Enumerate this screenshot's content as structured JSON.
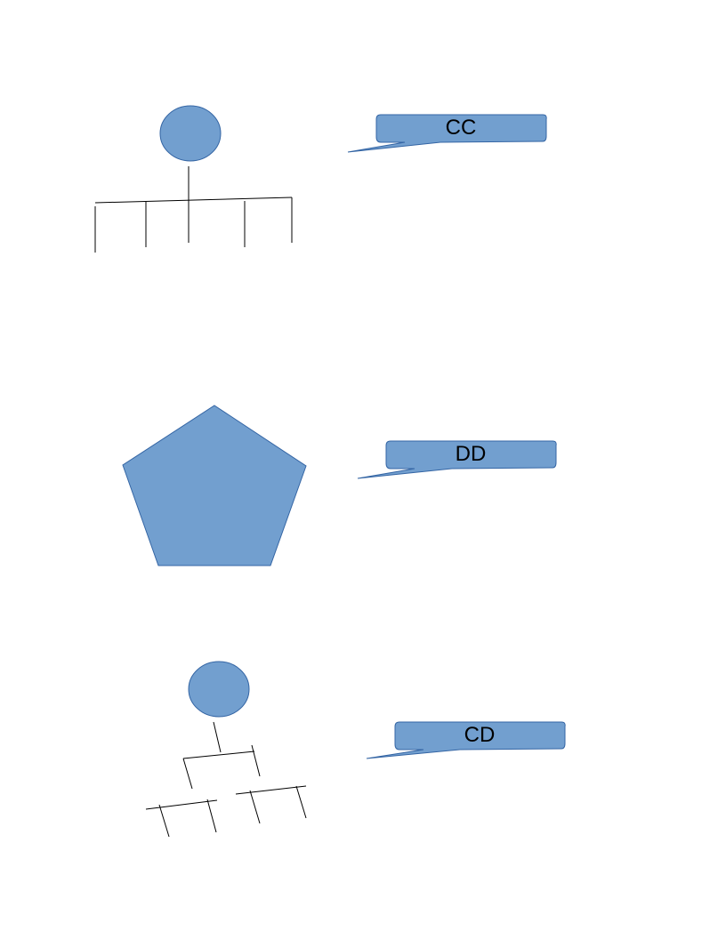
{
  "colors": {
    "shape_fill": "#729FCF",
    "shape_stroke": "#3465A4",
    "line": "#000000",
    "text": "#000000",
    "background": "#FFFFFF"
  },
  "callouts": [
    {
      "label": "CC"
    },
    {
      "label": "DD"
    },
    {
      "label": "CD"
    }
  ]
}
